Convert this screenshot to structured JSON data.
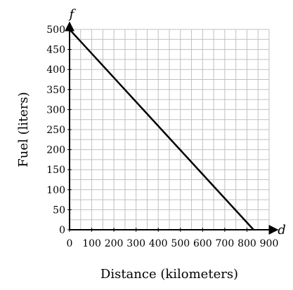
{
  "chart_data": {
    "type": "line",
    "xlabel": "Distance (kilometers)",
    "ylabel": "Fuel (liters)",
    "x_var": "d",
    "y_var": "f",
    "xlim": [
      0,
      900
    ],
    "ylim": [
      0,
      500
    ],
    "x_ticks": [
      0,
      100,
      200,
      300,
      400,
      500,
      600,
      700,
      800,
      900
    ],
    "y_ticks": [
      0,
      50,
      100,
      150,
      200,
      250,
      300,
      350,
      400,
      450,
      500
    ],
    "x_minor_step": 50,
    "y_minor_step": 25,
    "grid": true,
    "line_color": "#000000",
    "grid_color": "#c0c0c0",
    "series": [
      {
        "x": [
          0,
          830
        ],
        "y": [
          500,
          0
        ]
      }
    ]
  }
}
